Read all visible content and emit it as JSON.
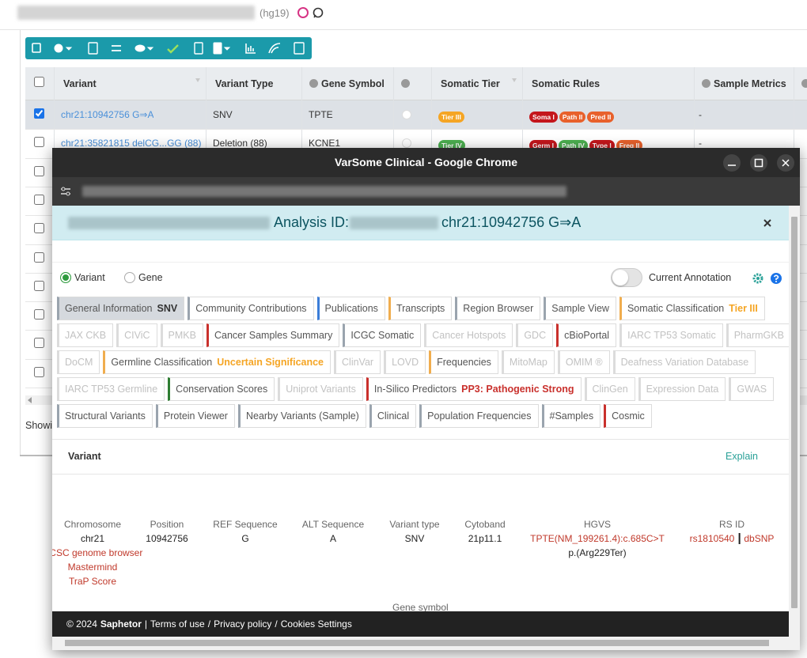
{
  "header": {
    "genome": "(hg19)"
  },
  "grid": {
    "columns": [
      "Variant",
      "Variant Type",
      "Gene Symbol",
      "Somatic Tier",
      "Somatic Rules",
      "Sample Metrics"
    ],
    "rows": [
      {
        "checked": true,
        "variant": "chr21:10942756 G⇒A",
        "type": "SNV",
        "gene": "TPTE",
        "tier": {
          "label": "Tier III",
          "color": "#f5a524"
        },
        "rules": [
          {
            "label": "Soma I",
            "color": "#c4161c"
          },
          {
            "label": "Path II",
            "color": "#e8612c"
          },
          {
            "label": "Pred II",
            "color": "#e8612c"
          }
        ],
        "metrics": "-"
      },
      {
        "checked": false,
        "variant": "chr21:35821815 delCG...GG (88)",
        "type": "Deletion (88)",
        "gene": "KCNE1",
        "tier": {
          "label": "Tier IV",
          "color": "#4caf50"
        },
        "rules": [
          {
            "label": "Germ I",
            "color": "#c4161c"
          },
          {
            "label": "Path IV",
            "color": "#4caf50"
          },
          {
            "label": "Type I",
            "color": "#c4161c"
          },
          {
            "label": "Freq II",
            "color": "#e8612c"
          }
        ],
        "metrics": "-"
      },
      {
        "checked": false
      },
      {
        "checked": false
      },
      {
        "checked": false
      },
      {
        "checked": false
      },
      {
        "checked": false
      },
      {
        "checked": false
      },
      {
        "checked": false
      },
      {
        "checked": false
      }
    ],
    "status": "Showi"
  },
  "popup": {
    "window_title": "VarSome Clinical - Google Chrome",
    "analysis_label": "Analysis ID:",
    "variant": "chr21:10942756 G⇒A",
    "modes": [
      {
        "label": "Variant",
        "selected": true
      },
      {
        "label": "Gene",
        "selected": false
      }
    ],
    "toggle_label": "Current Annotation",
    "tab_rows": [
      [
        {
          "label": "General Information",
          "note": "SNV",
          "note_color": "#333333",
          "accent": "#9aa4ae",
          "active": true
        },
        {
          "label": "Community Contributions",
          "accent": "#9aa4ae"
        },
        {
          "label": "Publications",
          "accent": "#3b7dd8"
        },
        {
          "label": "Transcripts",
          "accent": "#f0ad4e"
        },
        {
          "label": "Region Browser",
          "accent": "#9aa4ae"
        },
        {
          "label": "Sample View",
          "accent": "#9aa4ae"
        },
        {
          "label": "Somatic Classification",
          "note": "Tier III",
          "note_color": "#f5a524",
          "accent": "#f0ad4e"
        }
      ],
      [
        {
          "label": "JAX CKB",
          "disabled": true
        },
        {
          "label": "CIViC",
          "disabled": true
        },
        {
          "label": "PMKB",
          "disabled": true
        },
        {
          "label": "Cancer Samples Summary",
          "accent": "#c9302c"
        },
        {
          "label": "ICGC Somatic",
          "accent": "#9aa4ae"
        },
        {
          "label": "Cancer Hotspots",
          "disabled": true
        },
        {
          "label": "GDC",
          "disabled": true
        },
        {
          "label": "cBioPortal",
          "accent": "#c9302c"
        },
        {
          "label": "IARC TP53 Somatic",
          "disabled": true
        },
        {
          "label": "PharmGKB",
          "disabled": true
        }
      ],
      [
        {
          "label": "DoCM",
          "disabled": true
        },
        {
          "label": "Germline Classification",
          "note": "Uncertain Significance",
          "note_color": "#f5a524",
          "accent": "#f0ad4e"
        },
        {
          "label": "ClinVar",
          "disabled": true
        },
        {
          "label": "LOVD",
          "disabled": true
        },
        {
          "label": "Frequencies",
          "accent": "#f0ad4e"
        },
        {
          "label": "MitoMap",
          "disabled": true
        },
        {
          "label": "OMIM ®",
          "disabled": true
        },
        {
          "label": "Deafness Variation Database",
          "disabled": true
        }
      ],
      [
        {
          "label": "IARC TP53 Germline",
          "disabled": true
        },
        {
          "label": "Conservation Scores",
          "accent": "#2e7d32"
        },
        {
          "label": "Uniprot Variants",
          "disabled": true
        },
        {
          "label": "In-Silico Predictors",
          "note": "PP3: Pathogenic Strong",
          "note_color": "#c9302c",
          "accent": "#c9302c"
        },
        {
          "label": "ClinGen",
          "disabled": true
        },
        {
          "label": "Expression Data",
          "disabled": true
        },
        {
          "label": "GWAS",
          "disabled": true
        }
      ],
      [
        {
          "label": "Structural Variants",
          "accent": "#9aa4ae"
        },
        {
          "label": "Protein Viewer",
          "accent": "#9aa4ae"
        },
        {
          "label": "Nearby Variants (Sample)",
          "accent": "#9aa4ae"
        },
        {
          "label": "Clinical",
          "accent": "#9aa4ae"
        },
        {
          "label": "Population Frequencies",
          "accent": "#9aa4ae"
        },
        {
          "label": "#Samples",
          "accent": "#9aa4ae"
        },
        {
          "label": "Cosmic",
          "accent": "#c9302c"
        }
      ]
    ],
    "section_title": "Variant",
    "explain": "Explain",
    "fields": [
      {
        "label": "Chromosome",
        "value": "chr21",
        "links": [
          "UCSC genome browser",
          "Mastermind",
          "TraP Score"
        ]
      },
      {
        "label": "Position",
        "value": "10942756"
      },
      {
        "label": "REF Sequence",
        "value": "G"
      },
      {
        "label": "ALT Sequence",
        "value": "A"
      },
      {
        "label": "Variant type",
        "value": "SNV"
      },
      {
        "label": "Cytoband",
        "value": "21p11.1"
      },
      {
        "label": "HGVS",
        "link": "TPTE(NM_199261.4):c.685C>T",
        "extra": "p.(Arg229Ter)"
      },
      {
        "label": "RS ID",
        "inline_links": [
          "rs1810540",
          "dbSNP"
        ]
      }
    ],
    "next_label": "Gene symbol",
    "footer": [
      "© 2024",
      "Saphetor",
      "|",
      "Terms of use",
      "/",
      "Privacy policy",
      "/",
      "Cookies Settings"
    ]
  }
}
